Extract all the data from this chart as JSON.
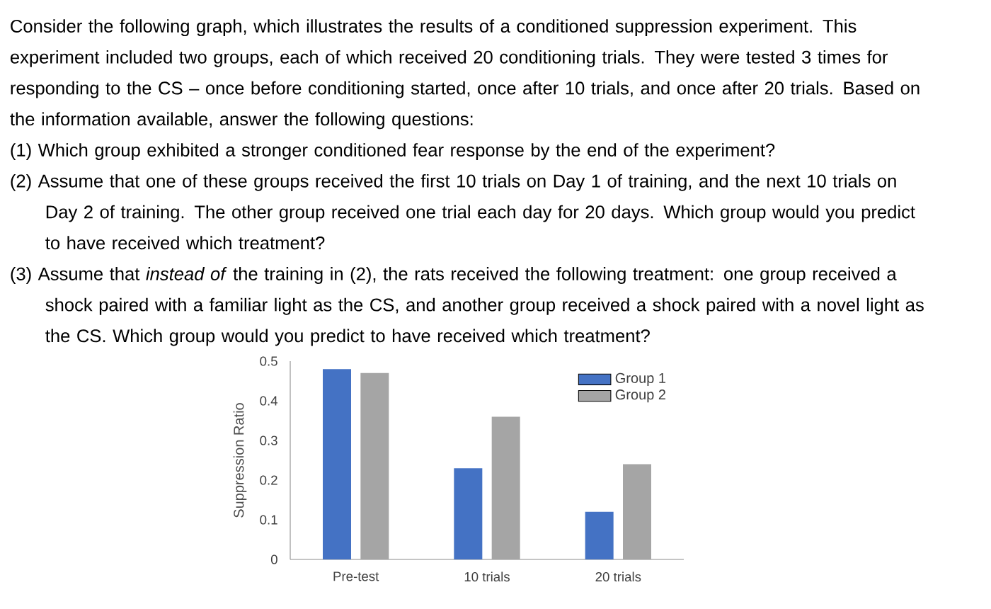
{
  "chart_data": {
    "type": "bar",
    "annotations": [
      "Consider the following graph, which illustrates the results of a conditioned suppression experiment. This experiment included two groups, each of which received 20 conditioning trials. They were tested 3 times for responding to the CS – once before conditioning started, once after 10 trials, and once after 20 trials. Based on the information available, answer the following questions:",
      "(1)  Which group exhibited a stronger conditioned fear response by the end of the experiment?",
      "(2)  Assume that one of these groups received the first 10 trials on Day 1 of training, and the next 10 trials on Day 2 of training. The other group received one trial each day for 20 days. Which group would you predict to have received which treatment?",
      "(3)  Assume that *instead of* the training in (2), the rats received the following treatment: one group received a shock paired with a familiar light as the CS, and another group received a shock paired with a novel light as the CS. Which group would you predict to have received which treatment?"
    ],
    "ylabel": "Suppression Ratio",
    "categories": [
      "Pre-test",
      "10 trials",
      "20 trials"
    ],
    "series": [
      {
        "name": "Group 1",
        "color": "#4472c4",
        "values": [
          0.48,
          0.23,
          0.12
        ]
      },
      {
        "name": "Group 2",
        "color": "#a5a5a5",
        "values": [
          0.47,
          0.36,
          0.24
        ]
      }
    ],
    "ylim": [
      0,
      0.5
    ],
    "yticks": [
      0,
      0.1,
      0.2,
      0.3,
      0.4,
      0.5
    ],
    "legend": "top right"
  }
}
